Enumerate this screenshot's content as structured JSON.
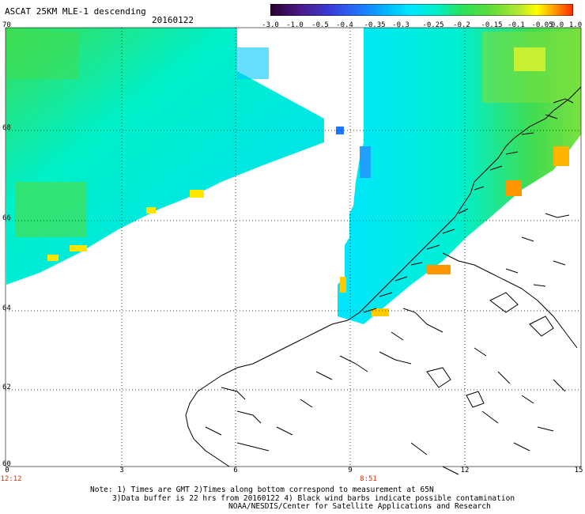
{
  "header": {
    "title": "ASCAT 25KM MLE-1 descending",
    "date": "20160122"
  },
  "colorbar": {
    "labels": [
      "-3.0",
      "-1.0",
      "-0.5",
      "-0.4",
      "-0.35",
      "-0.3",
      "-0.25",
      "-0.2",
      "-0.15",
      "-0.1",
      "-0.05",
      "0.0",
      "1.0"
    ],
    "colors": [
      "#2a002e",
      "#4b1a8a",
      "#3a3dd8",
      "#1e78ff",
      "#00b4ff",
      "#00e6ff",
      "#00f0c8",
      "#2ae05a",
      "#5adc3c",
      "#b4e632",
      "#ffff00",
      "#ff9600",
      "#ff2800"
    ]
  },
  "axes": {
    "lat_labels": [
      "70",
      "68",
      "66",
      "64",
      "62",
      "60"
    ],
    "lon_labels": [
      "0",
      "3",
      "6",
      "9",
      "12",
      "15"
    ],
    "time_labels": [
      "12:12",
      "8:51"
    ]
  },
  "notes": {
    "line1": "Note: 1) Times are GMT 2)Times along bottom correspond to measurement at 65N",
    "line2": "3)Data buffer is 22 hrs from 20160122 4) Black wind barbs indicate possible contamination",
    "line3": "NOAA/NESDIS/Center for Satellite Applications and Research"
  }
}
